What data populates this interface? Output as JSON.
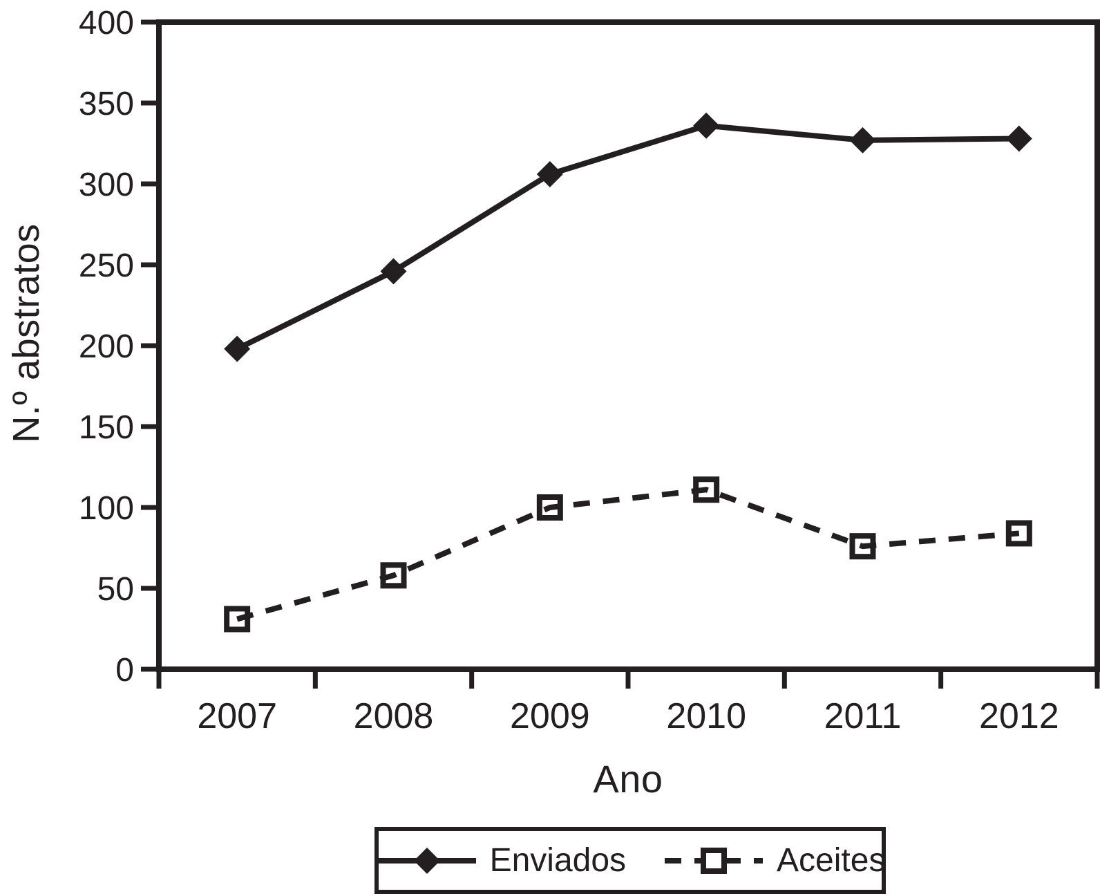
{
  "figure": {
    "background": "#ffffff",
    "ink": "#231f20"
  },
  "chart_data": {
    "type": "line",
    "title": "",
    "xlabel": "Ano",
    "ylabel": "N.º abstratos",
    "categories": [
      "2007",
      "2008",
      "2009",
      "2010",
      "2011",
      "2012"
    ],
    "series": [
      {
        "name": "Enviados",
        "line_style": "solid",
        "marker": "filled-diamond",
        "values": [
          198,
          246,
          306,
          336,
          327,
          328
        ]
      },
      {
        "name": "Aceites",
        "line_style": "dashed",
        "marker": "open-square",
        "values": [
          31,
          58,
          100,
          111,
          76,
          84
        ]
      }
    ],
    "ylim": [
      0,
      400
    ],
    "yticks": [
      0,
      50,
      100,
      150,
      200,
      250,
      300,
      350,
      400
    ],
    "grid": false,
    "legend_position": "bottom"
  }
}
